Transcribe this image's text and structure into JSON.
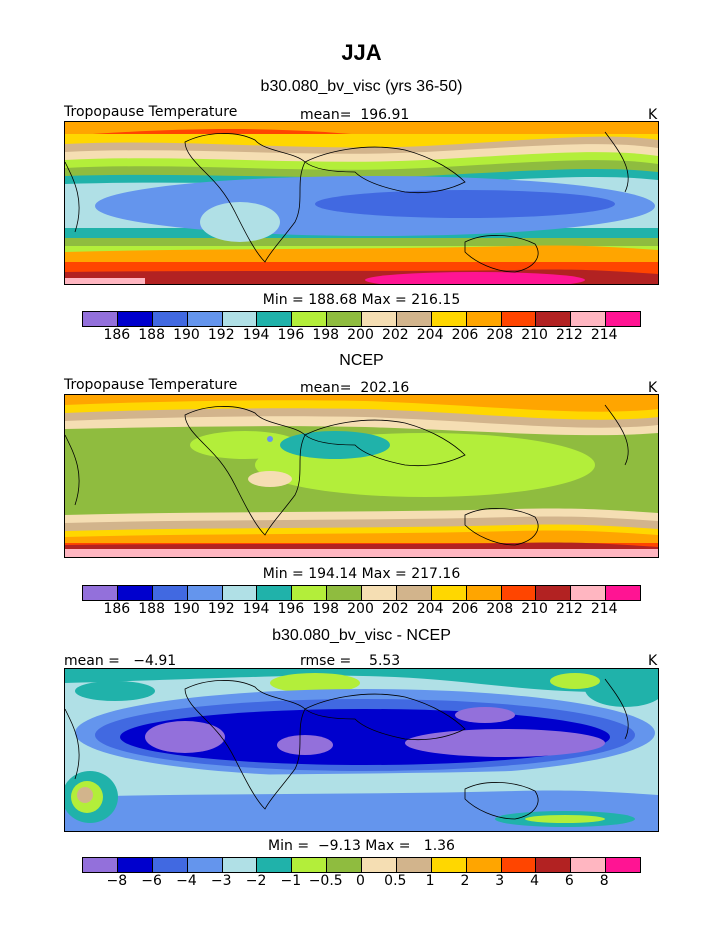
{
  "title": "JJA",
  "palette": [
    "#9370db",
    "#0000cd",
    "#4169e1",
    "#6495ed",
    "#b0e0e6",
    "#20b2aa",
    "#b3ee3a",
    "#8fbc3f",
    "#f5deb3",
    "#d2b48c",
    "#ffd700",
    "#ffa500",
    "#ff4500",
    "#b22222",
    "#ffb6c1",
    "#ff1493"
  ],
  "abs_ticks": [
    "186",
    "188",
    "190",
    "192",
    "194",
    "196",
    "198",
    "200",
    "202",
    "204",
    "206",
    "208",
    "210",
    "212",
    "214"
  ],
  "diff_ticks": [
    "−8",
    "−6",
    "−4",
    "−3",
    "−2",
    "−1",
    "−0.5",
    "0",
    "0.5",
    "1",
    "2",
    "3",
    "4",
    "6",
    "8"
  ],
  "panel1": {
    "subtitle": "b30.080_bv_visc (yrs 36-50)",
    "left_label": "Tropopause Temperature",
    "center_label": "mean=  196.91",
    "unit": "K",
    "minmax": "Min = 188.68 Max = 216.15"
  },
  "panel2": {
    "subtitle": "NCEP",
    "left_label": "Tropopause Temperature",
    "center_label": "mean=  202.16",
    "unit": "K",
    "minmax": "Min = 194.14 Max = 217.16"
  },
  "panel3": {
    "subtitle": "b30.080_bv_visc - NCEP",
    "left_label": "mean =   −4.91",
    "center_label": "rmse =    5.53",
    "unit": "K",
    "minmax": "Min =  −9.13 Max =   1.36"
  }
}
